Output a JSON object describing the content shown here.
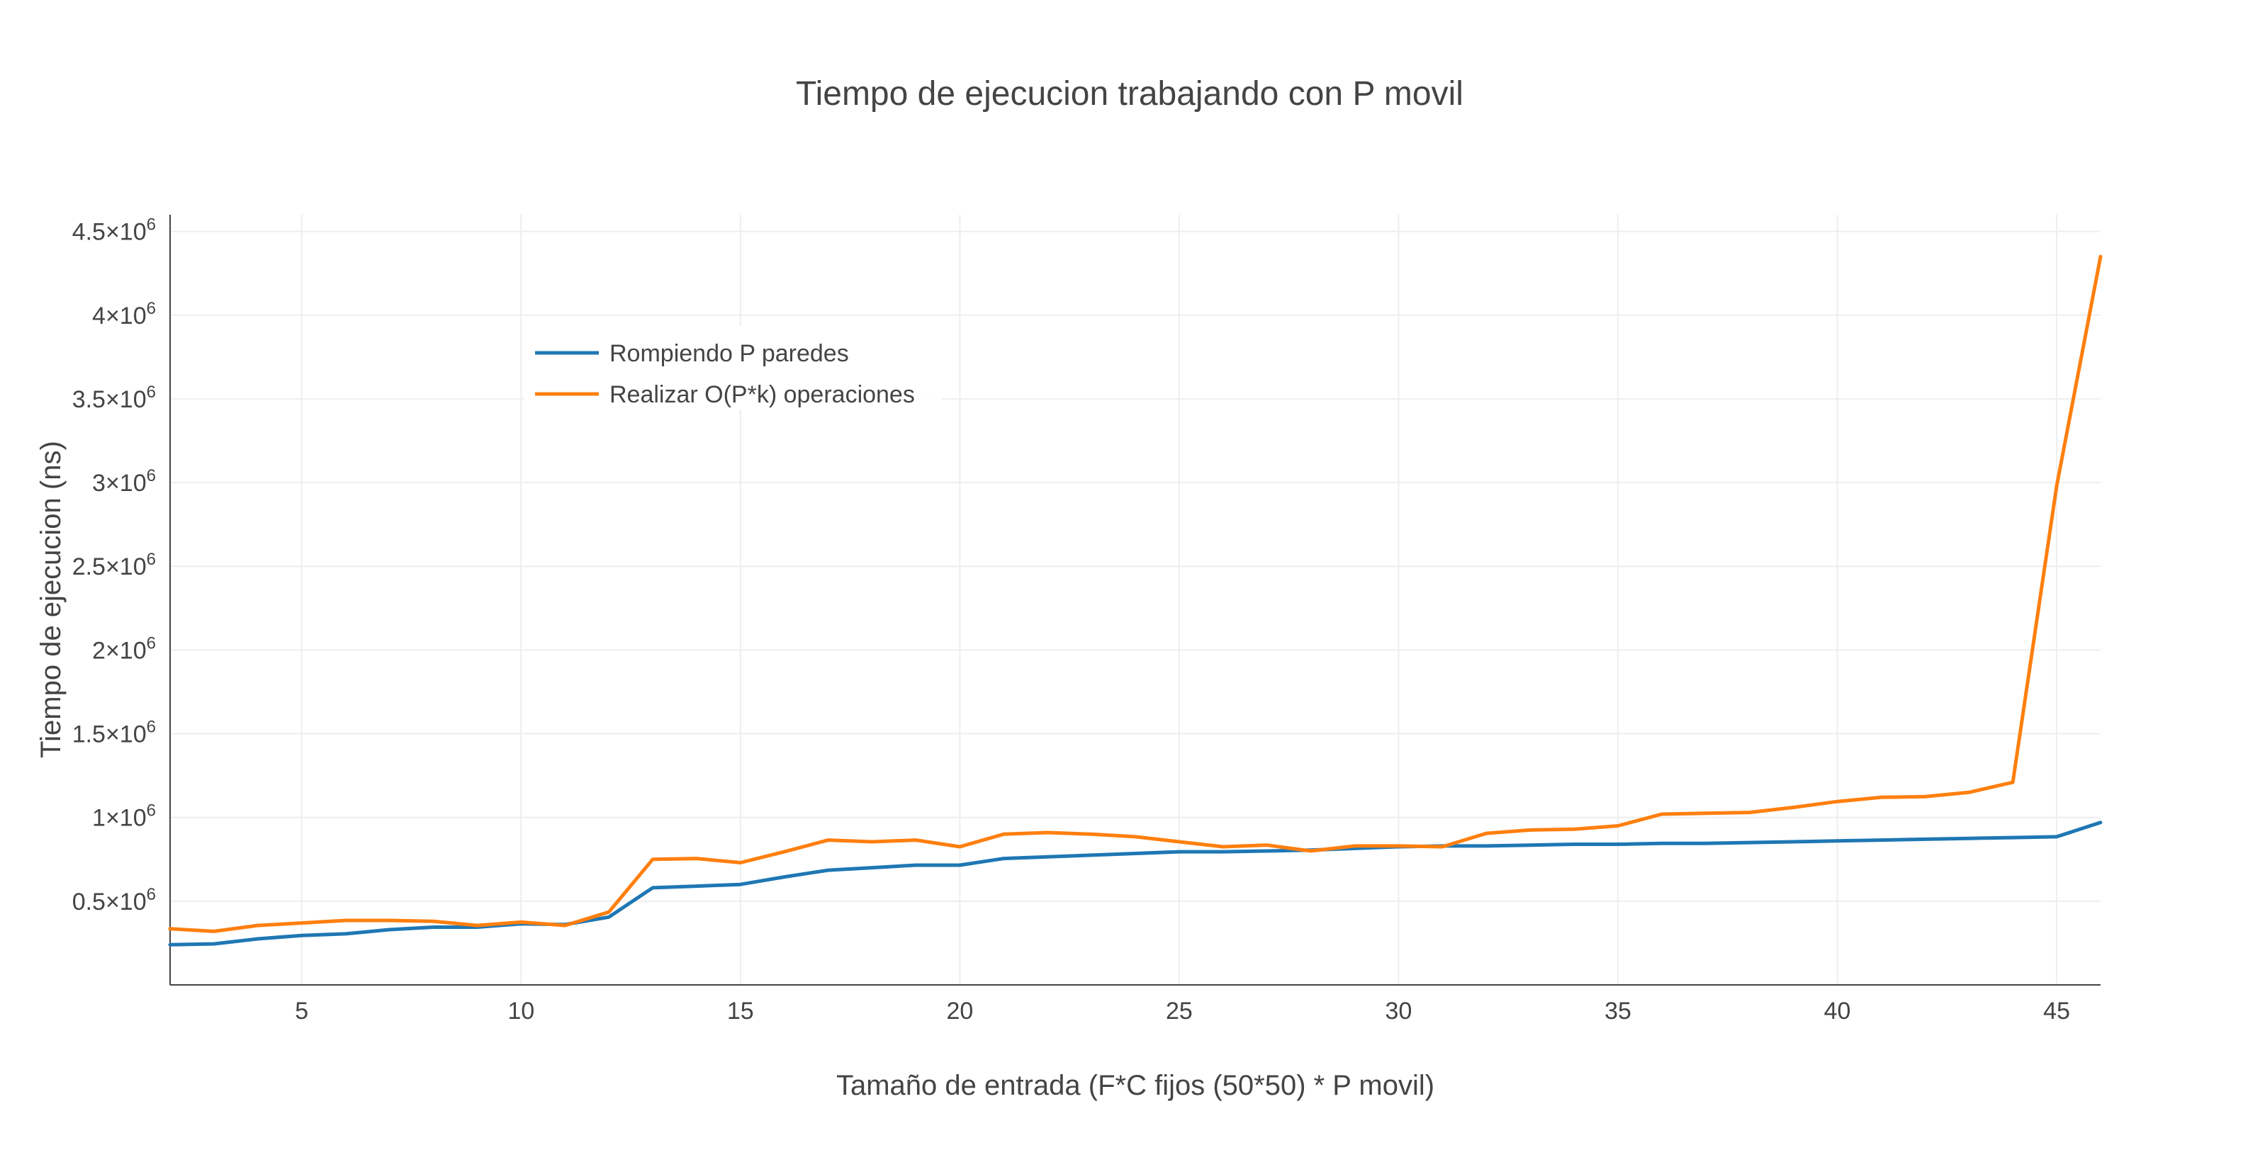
{
  "chart_data": {
    "type": "line",
    "title": "Tiempo de ejecucion trabajando con P movil",
    "xlabel": "Tamaño de entrada (F*C fijos (50*50) * P movil)",
    "ylabel": "Tiempo de ejecucion (ns)",
    "xlim": [
      2,
      46
    ],
    "ylim": [
      0,
      4600000
    ],
    "grid": true,
    "legend_position": "top-left",
    "x_ticks": [
      5,
      10,
      15,
      20,
      25,
      30,
      35,
      40,
      45
    ],
    "x_tick_labels": [
      "5",
      "10",
      "15",
      "20",
      "25",
      "30",
      "35",
      "40",
      "45"
    ],
    "y_ticks": [
      500000,
      1000000,
      1500000,
      2000000,
      2500000,
      3000000,
      3500000,
      4000000,
      4500000
    ],
    "y_tick_labels": [
      {
        "base": "0.5×10",
        "exp": "6"
      },
      {
        "base": "1×10",
        "exp": "6"
      },
      {
        "base": "1.5×10",
        "exp": "6"
      },
      {
        "base": "2×10",
        "exp": "6"
      },
      {
        "base": "2.5×10",
        "exp": "6"
      },
      {
        "base": "3×10",
        "exp": "6"
      },
      {
        "base": "3.5×10",
        "exp": "6"
      },
      {
        "base": "4×10",
        "exp": "6"
      },
      {
        "base": "4.5×10",
        "exp": "6"
      }
    ],
    "x": [
      2,
      3,
      4,
      5,
      6,
      7,
      8,
      9,
      10,
      11,
      12,
      13,
      14,
      15,
      16,
      17,
      18,
      19,
      20,
      21,
      22,
      23,
      24,
      25,
      26,
      27,
      28,
      29,
      30,
      31,
      32,
      33,
      34,
      35,
      36,
      37,
      38,
      39,
      40,
      41,
      42,
      43,
      44,
      45,
      46
    ],
    "series": [
      {
        "name": "Rompiendo P paredes",
        "color": "#1f77b4",
        "values": [
          240000,
          245000,
          275000,
          295000,
          305000,
          330000,
          345000,
          345000,
          365000,
          360000,
          405000,
          580000,
          590000,
          600000,
          645000,
          685000,
          700000,
          715000,
          715000,
          755000,
          765000,
          775000,
          785000,
          795000,
          795000,
          800000,
          805000,
          815000,
          825000,
          830000,
          830000,
          835000,
          840000,
          840000,
          845000,
          845000,
          850000,
          855000,
          860000,
          865000,
          870000,
          875000,
          880000,
          885000,
          970000
        ]
      },
      {
        "name": "Realizar O(P*k) operaciones",
        "color": "#ff7f0e",
        "values": [
          335000,
          320000,
          355000,
          370000,
          385000,
          385000,
          380000,
          355000,
          375000,
          355000,
          435000,
          750000,
          755000,
          730000,
          795000,
          865000,
          855000,
          865000,
          825000,
          900000,
          910000,
          900000,
          885000,
          855000,
          825000,
          835000,
          800000,
          830000,
          830000,
          825000,
          905000,
          925000,
          930000,
          950000,
          1020000,
          1025000,
          1030000,
          1060000,
          1095000,
          1120000,
          1125000,
          1150000,
          1210000,
          2980000,
          4350000
        ]
      }
    ]
  }
}
